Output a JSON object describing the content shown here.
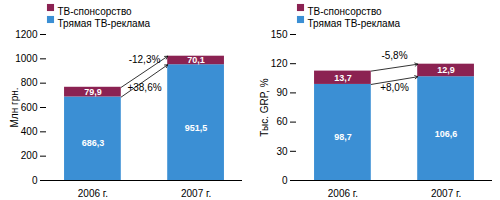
{
  "chart_data": [
    {
      "type": "bar",
      "stacked": true,
      "data_labels": true,
      "legend": "upper left",
      "categories": [
        "2006 г.",
        "2007 г."
      ],
      "series": [
        {
          "name": "Трямая ТВ-реклама",
          "color": "#3B8FD4",
          "values": [
            686.3,
            951.5
          ],
          "value_labels": [
            "686,3",
            "951,5"
          ]
        },
        {
          "name": "ТВ-спонсорство",
          "color": "#8B2252",
          "values": [
            79.9,
            70.1
          ],
          "value_labels": [
            "79,9",
            "70,1"
          ]
        }
      ],
      "ylabel": "Млн грн.",
      "ylim": [
        0,
        1200
      ],
      "yticks": [
        0,
        200,
        400,
        600,
        800,
        1000,
        1200
      ],
      "annotations": [
        {
          "text": "-12,3%",
          "series": "ТВ-спонсорство"
        },
        {
          "text": "+38,6%",
          "series": "Трямая ТВ-реклама"
        }
      ]
    },
    {
      "type": "bar",
      "stacked": true,
      "data_labels": true,
      "legend": "upper left",
      "categories": [
        "2006 г.",
        "2007 г."
      ],
      "series": [
        {
          "name": "Трямая ТВ-реклама",
          "color": "#3B8FD4",
          "values": [
            98.7,
            106.6
          ],
          "value_labels": [
            "98,7",
            "106,6"
          ]
        },
        {
          "name": "ТВ-спонсорство",
          "color": "#8B2252",
          "values": [
            13.7,
            12.9
          ],
          "value_labels": [
            "13,7",
            "12,9"
          ]
        }
      ],
      "ylabel": "Тыс. GRP, %",
      "ylim": [
        0,
        150
      ],
      "yticks": [
        0,
        30,
        60,
        90,
        120,
        150
      ],
      "annotations": [
        {
          "text": "-5,8%",
          "series": "ТВ-спонсорство"
        },
        {
          "text": "+8,0%",
          "series": "Трямая ТВ-реклама"
        }
      ]
    }
  ]
}
